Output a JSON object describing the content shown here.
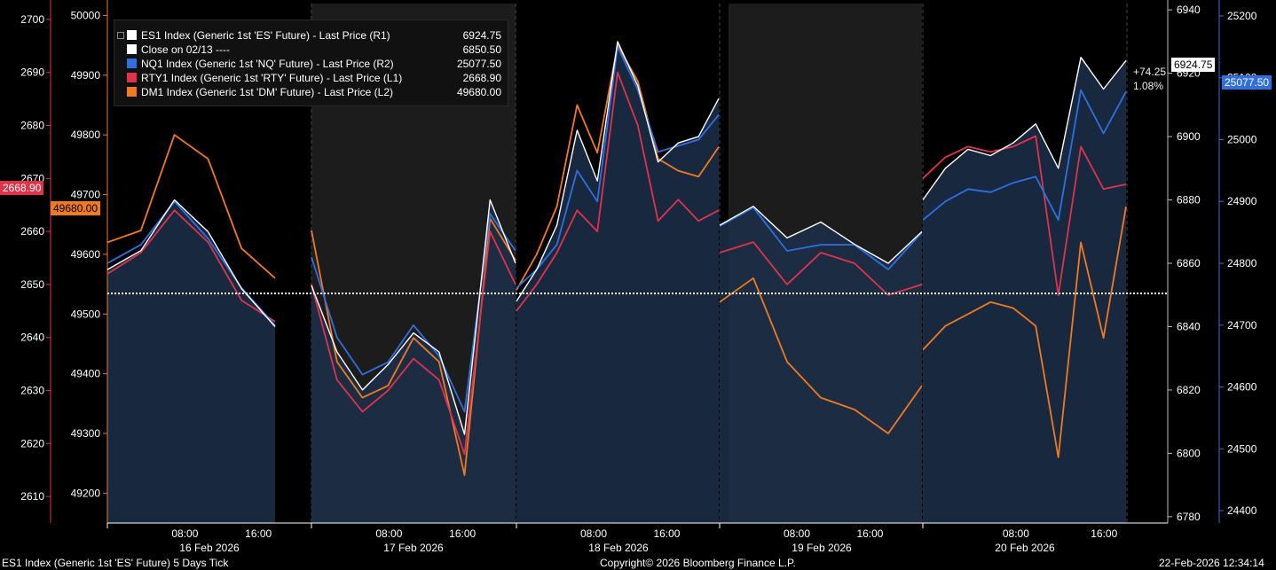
{
  "chart_data": {
    "type": "line",
    "title": "ES1 Index (Generic 1st 'ES' Future) 5 Days Tick",
    "x_day_labels": [
      "16 Feb 2026",
      "17 Feb 2026",
      "18 Feb 2026",
      "19 Feb 2026",
      "20 Feb 2026"
    ],
    "x_time_labels": [
      "08:00",
      "16:00"
    ],
    "axes": {
      "L1": {
        "ticks": [
          2610,
          2620,
          2630,
          2640,
          2650,
          2660,
          2670,
          2680,
          2690,
          2700
        ],
        "ylim": [
          2605,
          2703
        ]
      },
      "L2": {
        "ticks": [
          49200,
          49300,
          49400,
          49500,
          49600,
          49700,
          49800,
          49900,
          50000
        ],
        "ylim": [
          49150,
          50020
        ]
      },
      "R1": {
        "ticks": [
          6780,
          6800,
          6820,
          6840,
          6860,
          6880,
          6900,
          6920,
          6940
        ],
        "ylim": [
          6778,
          6942
        ]
      },
      "R2": {
        "ticks": [
          24400,
          24500,
          24600,
          24700,
          24800,
          24900,
          25000,
          25100,
          25200
        ],
        "ylim": [
          24380,
          25220
        ]
      }
    },
    "series": [
      {
        "name": "ES1 Index (Generic 1st 'ES' Future) - Last Price (R1)",
        "axis": "R1",
        "color": "#ffffff",
        "last": 6924.75,
        "values": [
          6858,
          6864,
          6880,
          6870,
          6852,
          6840,
          6853,
          6832,
          6820,
          6828,
          6838,
          6832,
          6806,
          6880,
          6860,
          6848,
          6858,
          6872,
          6902,
          6886,
          6930,
          6916,
          6892,
          6898,
          6900,
          6912,
          6872,
          6878,
          6868,
          6873,
          6866,
          6860,
          6870,
          6880,
          6890,
          6896,
          6894,
          6898,
          6904,
          6890,
          6925,
          6915,
          6924
        ]
      },
      {
        "name": "Close on 02/13 ----",
        "axis": "R1",
        "color": "#ffffff",
        "last": 6850.5,
        "values": [
          6850.5
        ]
      },
      {
        "name": "NQ1 Index (Generic 1st 'NQ' Future) - Last Price (R2)",
        "axis": "R2",
        "color": "#2f6fe0",
        "last": 25077.5,
        "values": [
          24800,
          24830,
          24900,
          24840,
          24760,
          24700,
          24810,
          24680,
          24620,
          24640,
          24700,
          24650,
          24560,
          24880,
          24820,
          24760,
          24790,
          24830,
          24950,
          24900,
          25150,
          25080,
          24980,
          24990,
          25000,
          25040,
          24860,
          24890,
          24820,
          24830,
          24830,
          24790,
          24850,
          24870,
          24900,
          24920,
          24915,
          24930,
          24940,
          24870,
          25080,
          25010,
          25077.5
        ]
      },
      {
        "name": "RTY1 Index (Generic 1st 'RTY' Future) - Last Price (L1)",
        "axis": "L1",
        "color": "#e0334a",
        "last": 2668.9,
        "values": [
          2652,
          2656,
          2664,
          2658,
          2647,
          2643,
          2650,
          2632,
          2626,
          2630,
          2636,
          2632,
          2618,
          2660,
          2650,
          2645,
          2650,
          2656,
          2664,
          2660,
          2690,
          2680,
          2662,
          2666,
          2662,
          2664,
          2656,
          2658,
          2650,
          2656,
          2654,
          2648,
          2650,
          2670,
          2674,
          2676,
          2675,
          2676,
          2678,
          2648,
          2676,
          2668,
          2668.9
        ]
      },
      {
        "name": "DM1 Index (Generic 1st 'DM' Future) - Last Price (L2)",
        "axis": "L2",
        "color": "#f07a22",
        "last": 49680.0,
        "values": [
          49620,
          49640,
          49800,
          49760,
          49610,
          49560,
          49640,
          49420,
          49360,
          49380,
          49460,
          49420,
          49230,
          49660,
          49590,
          49540,
          49600,
          49680,
          49850,
          49770,
          49950,
          49890,
          49760,
          49740,
          49730,
          49780,
          49520,
          49560,
          49420,
          49360,
          49340,
          49300,
          49380,
          49440,
          49480,
          49500,
          49520,
          49510,
          49480,
          49260,
          49620,
          49460,
          49680
        ]
      }
    ],
    "tags": {
      "left_rty": "2668.90",
      "left_dm": "49680.00",
      "right_es": "6924.75",
      "right_nq": "25077.50"
    },
    "change": {
      "abs": "+74.25",
      "pct": "1.08%"
    },
    "grid": false,
    "legend_position": "top-left"
  },
  "legend": [
    {
      "label": "ES1 Index (Generic 1st 'ES' Future) - Last Price (R1)",
      "value": "6924.75",
      "color": "#ffffff"
    },
    {
      "label": "Close on 02/13 ----",
      "value": "6850.50",
      "color": "#ffffff"
    },
    {
      "label": "NQ1 Index (Generic 1st 'NQ' Future) - Last Price (R2)",
      "value": "25077.50",
      "color": "#2f6fe0"
    },
    {
      "label": "RTY1 Index (Generic 1st 'RTY' Future) - Last Price (L1)",
      "value": "2668.90",
      "color": "#e0334a"
    },
    {
      "label": "DM1 Index (Generic 1st 'DM' Future) - Last Price (L2)",
      "value": "49680.00",
      "color": "#f07a22"
    }
  ],
  "footer": {
    "left": "ES1 Index (Generic 1st 'ES' Future) 5 Days Tick",
    "center": "Copyright© 2026 Bloomberg Finance L.P.",
    "right": "22-Feb-2026 12:34:14"
  }
}
